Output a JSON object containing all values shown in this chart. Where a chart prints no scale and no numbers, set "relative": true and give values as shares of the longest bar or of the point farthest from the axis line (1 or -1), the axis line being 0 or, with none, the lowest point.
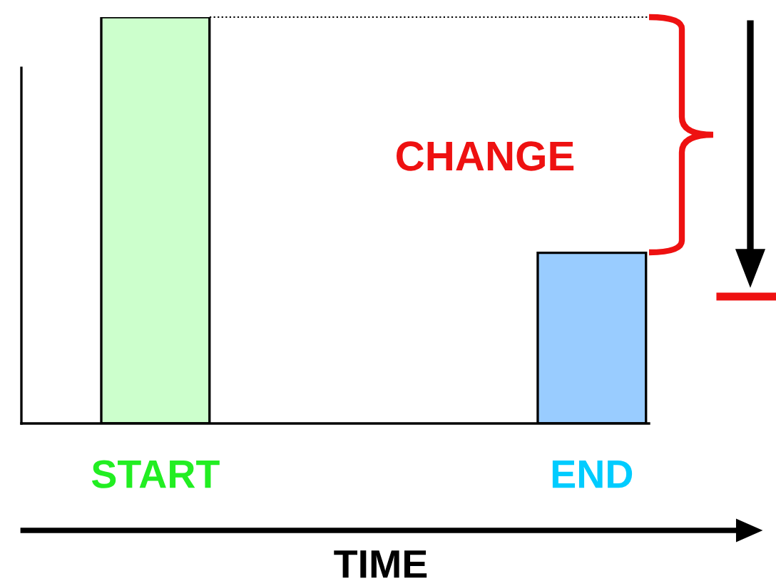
{
  "chart_data": {
    "type": "bar",
    "relative": true,
    "categories": [
      "START",
      "END"
    ],
    "values": [
      1,
      0.42
    ],
    "colors": [
      "#ccffcc",
      "#99ccff"
    ],
    "xlabel": "TIME",
    "annotations": [
      "CHANGE"
    ],
    "grid": false,
    "legend": false
  }
}
